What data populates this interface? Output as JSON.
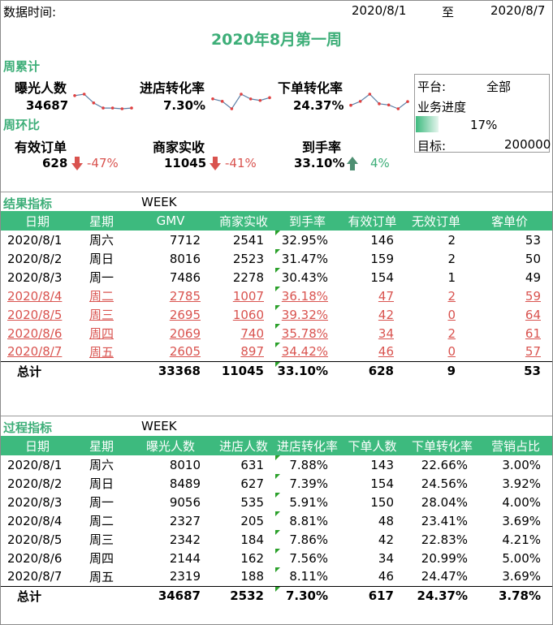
{
  "header": {
    "data_time_label": "数据时间:",
    "start_date": "2020/8/1",
    "to_label": "至",
    "end_date": "2020/8/7"
  },
  "title": "2020年8月第一周",
  "weekly_cumulative": {
    "label": "周累计",
    "kpis": [
      {
        "name": "曝光人数",
        "value": "34687",
        "spark": [
          7.2,
          7.4,
          6.2,
          5.5,
          5.5,
          5.4,
          5.5
        ]
      },
      {
        "name": "进店转化率",
        "value": "7.30%",
        "spark": [
          7.88,
          7.39,
          5.91,
          8.81,
          7.86,
          7.56,
          8.11
        ]
      },
      {
        "name": "下单转化率",
        "value": "24.37%",
        "spark": [
          22.66,
          24.56,
          28.04,
          23.41,
          22.83,
          20.99,
          24.47
        ]
      }
    ]
  },
  "week_over_week": {
    "label": "周环比",
    "kpis": [
      {
        "name": "有效订单",
        "value": "628",
        "change": "-47%",
        "direction": "down"
      },
      {
        "name": "商家实收",
        "value": "11045",
        "change": "-41%",
        "direction": "down"
      },
      {
        "name": "到手率",
        "value": "33.10%",
        "change": "4%",
        "direction": "up"
      }
    ]
  },
  "info_box": {
    "platform_label": "平台:",
    "platform_value": "全部",
    "progress_label": "业务进度",
    "progress_value": "17%",
    "progress_fraction": 0.17,
    "target_label": "目标:",
    "target_value": "200000"
  },
  "result_table": {
    "section_label": "结果指标",
    "week_label": "WEEK",
    "columns": [
      "日期",
      "星期",
      "GMV",
      "商家实收",
      "到手率",
      "有效订单",
      "无效订单",
      "客单价"
    ],
    "rows": [
      [
        "2020/8/1",
        "周六",
        "7712",
        "2541",
        "32.95%",
        "146",
        "2",
        "53"
      ],
      [
        "2020/8/2",
        "周日",
        "8016",
        "2523",
        "31.47%",
        "159",
        "2",
        "50"
      ],
      [
        "2020/8/3",
        "周一",
        "7486",
        "2278",
        "30.43%",
        "154",
        "1",
        "49"
      ],
      [
        "2020/8/4",
        "周二",
        "2785",
        "1007",
        "36.18%",
        "47",
        "2",
        "59"
      ],
      [
        "2020/8/5",
        "周三",
        "2695",
        "1060",
        "39.32%",
        "42",
        "0",
        "64"
      ],
      [
        "2020/8/6",
        "周四",
        "2069",
        "740",
        "35.78%",
        "34",
        "2",
        "61"
      ],
      [
        "2020/8/7",
        "周五",
        "2605",
        "897",
        "34.42%",
        "46",
        "0",
        "57"
      ]
    ],
    "total": [
      "总计",
      "",
      "33368",
      "11045",
      "33.10%",
      "628",
      "9",
      "53"
    ]
  },
  "process_table": {
    "section_label": "过程指标",
    "week_label": "WEEK",
    "columns": [
      "日期",
      "星期",
      "曝光人数",
      "进店人数",
      "进店转化率",
      "下单人数",
      "下单转化率",
      "营销占比"
    ],
    "rows": [
      [
        "2020/8/1",
        "周六",
        "8010",
        "631",
        "7.88%",
        "143",
        "22.66%",
        "3.00%"
      ],
      [
        "2020/8/2",
        "周日",
        "8489",
        "627",
        "7.39%",
        "154",
        "24.56%",
        "3.92%"
      ],
      [
        "2020/8/3",
        "周一",
        "9056",
        "535",
        "5.91%",
        "150",
        "28.04%",
        "4.00%"
      ],
      [
        "2020/8/4",
        "周二",
        "2327",
        "205",
        "8.81%",
        "48",
        "23.41%",
        "3.69%"
      ],
      [
        "2020/8/5",
        "周三",
        "2342",
        "184",
        "7.86%",
        "42",
        "22.83%",
        "4.21%"
      ],
      [
        "2020/8/6",
        "周四",
        "2144",
        "162",
        "7.56%",
        "34",
        "20.99%",
        "5.00%"
      ],
      [
        "2020/8/7",
        "周五",
        "2319",
        "188",
        "8.11%",
        "46",
        "24.47%",
        "3.69%"
      ]
    ],
    "total": [
      "总计",
      "",
      "34687",
      "2532",
      "7.30%",
      "617",
      "24.37%",
      "3.78%"
    ]
  },
  "colors": {
    "accent_green": "#3dae78",
    "header_green": "#3dba7e",
    "down_red": "#d9534f",
    "spark_line": "#5b7fa6",
    "spark_dot": "#e04040"
  }
}
